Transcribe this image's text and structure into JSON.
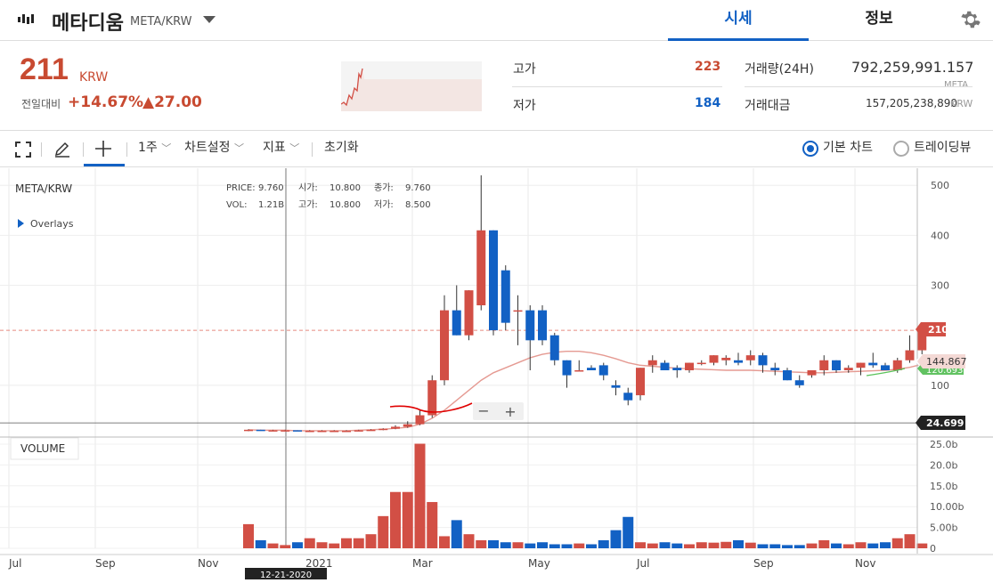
{
  "header": {
    "coin_name": "메타디움",
    "coin_symbol": "META/KRW",
    "tabs": [
      {
        "label": "시세",
        "active": true
      },
      {
        "label": "정보",
        "active": false
      }
    ],
    "icons": {
      "logo": "metadium-logo-icon",
      "dropdown": "chevron-down-icon",
      "settings": "gear-icon"
    }
  },
  "ticker": {
    "price": "211",
    "unit": "KRW",
    "change_label": "전일대비",
    "change_pct": "+14.67%",
    "change_abs": "▲27.00",
    "high_label": "고가",
    "high": "223",
    "low_label": "저가",
    "low": "184",
    "volume_label": "거래량(24H)",
    "volume": "792,259,991.157",
    "volume_unit": "META",
    "value_label": "거래대금",
    "value": "157,205,238,890",
    "value_unit": "KRW"
  },
  "toolbar": {
    "interval": "1주",
    "chart_settings": "차트설정",
    "indicators": "지표",
    "reset": "초기화",
    "basic_chart": "기본 차트",
    "tradingview": "트레이딩뷰",
    "icons": [
      "fullscreen-icon",
      "pencil-icon",
      "crosshair-icon",
      "chevron-down-icon"
    ]
  },
  "chart_data": {
    "type": "candlestick",
    "symbol": "META/KRW",
    "overlays_label": "Overlays",
    "legend": {
      "price_label": "PRICE:",
      "price": "9.760",
      "vol_label": "VOL:",
      "vol": "1.21B",
      "open_label": "시가:",
      "open": "10.800",
      "high_label": "고가:",
      "high": "10.800",
      "close_label": "종가:",
      "close": "9.760",
      "low_label": "저가:",
      "low": "8.500"
    },
    "x_ticks": [
      "Jul",
      "Sep",
      "Nov",
      "2021",
      "Mar",
      "May",
      "Jul",
      "Sep",
      "Nov"
    ],
    "crosshair_date": "12-21-2020",
    "y_ticks": [
      500,
      400,
      300,
      100
    ],
    "ylim": [
      0,
      520
    ],
    "volume_label": "VOLUME",
    "volume_ticks": [
      "25.0b",
      "20.0b",
      "15.0b",
      "10.00b",
      "5.00b",
      "0"
    ],
    "volume_ylim": [
      0,
      27
    ],
    "current_price_tag": "210",
    "ma_tag": "144.867",
    "ma2_tag": "120.693",
    "crosshair_price_tag": "24.699",
    "zoom": {
      "minus": "−",
      "plus": "+"
    },
    "candles": [
      [
        10,
        12,
        8,
        11
      ],
      [
        11,
        11,
        9,
        10
      ],
      [
        10,
        11,
        9,
        10
      ],
      [
        10,
        11,
        9,
        10
      ],
      [
        10,
        10,
        8,
        9
      ],
      [
        9,
        10,
        8,
        9
      ],
      [
        9,
        10,
        8,
        9
      ],
      [
        9,
        10,
        8,
        9
      ],
      [
        9,
        10,
        8,
        9
      ],
      [
        9,
        11,
        8,
        10
      ],
      [
        10,
        12,
        9,
        11
      ],
      [
        11,
        14,
        10,
        13
      ],
      [
        13,
        20,
        12,
        17
      ],
      [
        17,
        28,
        15,
        22
      ],
      [
        22,
        50,
        20,
        40
      ],
      [
        40,
        120,
        35,
        110
      ],
      [
        110,
        280,
        100,
        250
      ],
      [
        250,
        300,
        200,
        200
      ],
      [
        200,
        290,
        190,
        290
      ],
      [
        260,
        520,
        250,
        410
      ],
      [
        410,
        410,
        200,
        210
      ],
      [
        330,
        340,
        210,
        225
      ],
      [
        250,
        280,
        180,
        250
      ],
      [
        250,
        260,
        130,
        190
      ],
      [
        250,
        260,
        180,
        190
      ],
      [
        200,
        205,
        140,
        150
      ],
      [
        150,
        150,
        95,
        120
      ],
      [
        130,
        150,
        130,
        130
      ],
      [
        135,
        140,
        130,
        130
      ],
      [
        140,
        145,
        110,
        120
      ],
      [
        100,
        110,
        80,
        95
      ],
      [
        85,
        95,
        60,
        70
      ],
      [
        80,
        135,
        70,
        135
      ],
      [
        140,
        160,
        125,
        150
      ],
      [
        145,
        150,
        130,
        130
      ],
      [
        135,
        140,
        115,
        130
      ],
      [
        130,
        145,
        125,
        145
      ],
      [
        145,
        150,
        140,
        145
      ],
      [
        145,
        160,
        140,
        160
      ],
      [
        150,
        160,
        140,
        155
      ],
      [
        150,
        165,
        140,
        145
      ],
      [
        150,
        170,
        140,
        160
      ],
      [
        160,
        165,
        125,
        140
      ],
      [
        135,
        145,
        120,
        130
      ],
      [
        130,
        135,
        110,
        110
      ],
      [
        110,
        120,
        95,
        100
      ],
      [
        120,
        130,
        115,
        130
      ],
      [
        130,
        160,
        120,
        150
      ],
      [
        150,
        150,
        125,
        130
      ],
      [
        130,
        140,
        125,
        135
      ],
      [
        135,
        145,
        120,
        145
      ],
      [
        145,
        165,
        135,
        140
      ],
      [
        140,
        145,
        130,
        130
      ],
      [
        130,
        155,
        125,
        150
      ],
      [
        150,
        200,
        145,
        170
      ],
      [
        170,
        220,
        160,
        210
      ]
    ],
    "ma": [
      11,
      10,
      10,
      10,
      9,
      9,
      9,
      9,
      9,
      10,
      11,
      12,
      14,
      16,
      22,
      34,
      50,
      70,
      90,
      110,
      125,
      135,
      145,
      155,
      162,
      166,
      168,
      168,
      165,
      160,
      153,
      145,
      140,
      138,
      136,
      134,
      133,
      132,
      131,
      130,
      130,
      130,
      129,
      128,
      127,
      126,
      125,
      125,
      126,
      127,
      128,
      129,
      130,
      132,
      136,
      142
    ],
    "volume": [
      6,
      2,
      1.2,
      0.8,
      1.5,
      2.5,
      1.5,
      1.2,
      2.5,
      2.5,
      3.5,
      8,
      14,
      14,
      26,
      11.5,
      3,
      7,
      3.5,
      2,
      2,
      1.5,
      1.5,
      1.2,
      1.5,
      1,
      1,
      1.2,
      1,
      2,
      4.5,
      7.8,
      1.5,
      1.2,
      1.5,
      1.2,
      1,
      1.5,
      1.4,
      1.6,
      2,
      1.4,
      1,
      1,
      0.8,
      0.8,
      1.2,
      2,
      1.2,
      1,
      1.5,
      1.2,
      1.5,
      2.5,
      3.5,
      1.2
    ]
  }
}
